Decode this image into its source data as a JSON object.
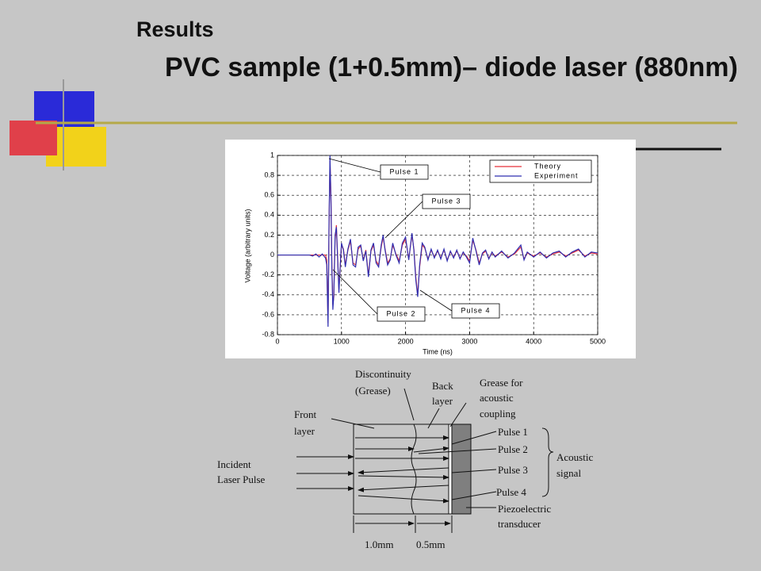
{
  "header": {
    "title": "Results",
    "subtitle": "PVC sample (1+0.5mm)– diode laser (880nm)"
  },
  "chart_data": {
    "type": "line",
    "x_label": "Time (ns)",
    "y_label": "Voltage (arbitrary units)",
    "x": [
      0,
      500,
      550,
      600,
      650,
      700,
      750,
      770,
      790,
      805,
      820,
      835,
      850,
      865,
      880,
      900,
      920,
      940,
      960,
      980,
      1000,
      1030,
      1060,
      1100,
      1140,
      1180,
      1220,
      1260,
      1300,
      1340,
      1380,
      1420,
      1460,
      1500,
      1540,
      1580,
      1620,
      1650,
      1680,
      1720,
      1760,
      1800,
      1850,
      1900,
      1950,
      2000,
      2050,
      2100,
      2130,
      2160,
      2190,
      2220,
      2260,
      2300,
      2350,
      2400,
      2450,
      2500,
      2550,
      2600,
      2650,
      2700,
      2750,
      2800,
      2850,
      2900,
      2950,
      3000,
      3050,
      3100,
      3150,
      3200,
      3250,
      3300,
      3350,
      3400,
      3500,
      3600,
      3700,
      3800,
      3850,
      3900,
      4000,
      4100,
      4200,
      4300,
      4400,
      4500,
      4600,
      4700,
      4800,
      4900,
      5000
    ],
    "series": [
      {
        "name": "Theory",
        "color": "#e8303a",
        "values": [
          0,
          0,
          0,
          0,
          0,
          0,
          0,
          -0.05,
          -0.68,
          0.25,
          0.95,
          0.6,
          -0.1,
          -0.5,
          -0.42,
          0.15,
          0.3,
          -0.02,
          -0.35,
          -0.12,
          0.1,
          0.06,
          -0.1,
          0.05,
          0.14,
          -0.08,
          -0.1,
          0.06,
          0.09,
          -0.05,
          0.05,
          -0.2,
          0.04,
          0.1,
          -0.06,
          -0.1,
          0.08,
          0.18,
          0.06,
          -0.08,
          -0.04,
          0.1,
          0.01,
          -0.06,
          0.1,
          0.16,
          -0.04,
          0.2,
          0.06,
          -0.22,
          -0.4,
          -0.12,
          0.1,
          0.07,
          -0.04,
          0.05,
          -0.02,
          0.04,
          -0.03,
          0.05,
          -0.05,
          0.03,
          -0.02,
          0.04,
          -0.03,
          0.02,
          -0.01,
          -0.06,
          0.15,
          0.05,
          -0.08,
          0.01,
          0.04,
          -0.03,
          0.02,
          -0.01,
          0.03,
          -0.02,
          0.01,
          0.08,
          -0.04,
          0.02,
          -0.01,
          0.02,
          -0.02,
          0.01,
          0.03,
          -0.01,
          0.02,
          0.05,
          -0.01,
          0.02,
          0.01
        ]
      },
      {
        "name": "Experiment",
        "color": "#2f2fb0",
        "values": [
          0,
          0,
          -0.01,
          0.01,
          -0.02,
          0.01,
          -0.03,
          -0.1,
          -0.72,
          0.3,
          1.0,
          0.55,
          -0.15,
          -0.55,
          -0.4,
          0.2,
          0.28,
          -0.05,
          -0.38,
          -0.1,
          0.12,
          0.05,
          -0.12,
          0.06,
          0.16,
          -0.1,
          -0.12,
          0.08,
          0.1,
          -0.06,
          0.04,
          -0.22,
          0.05,
          0.12,
          -0.08,
          -0.12,
          0.1,
          0.2,
          0.05,
          -0.1,
          -0.05,
          0.12,
          0.0,
          -0.08,
          0.12,
          0.18,
          -0.05,
          0.22,
          0.05,
          -0.25,
          -0.42,
          -0.1,
          0.12,
          0.08,
          -0.05,
          0.06,
          -0.03,
          0.05,
          -0.04,
          0.06,
          -0.06,
          0.04,
          -0.03,
          0.05,
          -0.04,
          0.03,
          -0.02,
          -0.08,
          0.17,
          0.04,
          -0.1,
          0.02,
          0.05,
          -0.04,
          0.03,
          -0.02,
          0.04,
          -0.03,
          0.02,
          0.1,
          -0.05,
          0.03,
          -0.02,
          0.03,
          -0.03,
          0.02,
          0.04,
          -0.02,
          0.03,
          0.06,
          -0.02,
          0.03,
          0.02
        ]
      }
    ],
    "xlim": [
      0,
      5000
    ],
    "xticks": [
      0,
      1000,
      2000,
      3000,
      4000,
      5000
    ],
    "ylim": [
      -0.8,
      1
    ],
    "yticks": [
      -0.8,
      -0.6,
      -0.4,
      -0.2,
      0,
      0.2,
      0.4,
      0.6,
      0.8,
      1
    ],
    "grid": true,
    "legend": "upper right",
    "annotations": [
      "Pulse 1",
      "Pulse 3",
      "Pulse 2",
      "Pulse 4"
    ]
  },
  "diagram": {
    "discontinuity": [
      "Discontinuity",
      "(Grease)"
    ],
    "back_layer": [
      "Back",
      "layer"
    ],
    "grease": [
      "Grease for",
      "acoustic",
      "coupling"
    ],
    "front_layer": [
      "Front",
      "layer"
    ],
    "incident": [
      "Incident",
      "Laser Pulse"
    ],
    "pulses": [
      "Pulse 1",
      "Pulse 2",
      "Pulse 3",
      "Pulse 4"
    ],
    "acoustic_signal": [
      "Acoustic",
      "signal"
    ],
    "piezo": [
      "Piezoelectric",
      "transducer"
    ],
    "dim_front": "1.0mm",
    "dim_back": "0.5mm"
  }
}
